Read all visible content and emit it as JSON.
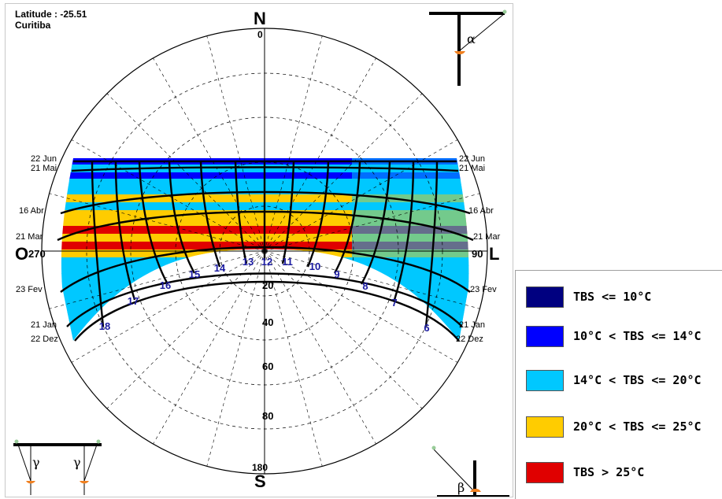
{
  "header": {
    "latitude": "Latitude :  -25.51",
    "city": "Curitiba"
  },
  "cardinals": {
    "north": "N",
    "south": "S",
    "west": "O",
    "east": "L"
  },
  "azimuth_labels": {
    "north": "0",
    "south": "180",
    "west": "270",
    "east": "90"
  },
  "altitude_labels": [
    "20",
    "40",
    "60",
    "80"
  ],
  "date_labels_left": [
    "22 Jun",
    "21 Mai",
    "16 Abr",
    "21 Mar",
    "23 Fev",
    "21 Jan",
    "22 Dez"
  ],
  "date_labels_right": [
    "22 Jun",
    "21 Mai",
    "16 Abr",
    "21 Mar",
    "23 Fev",
    "21 Jan",
    "22 Dez"
  ],
  "hour_labels": [
    "6",
    "7",
    "8",
    "9",
    "10",
    "11",
    "12",
    "13",
    "14",
    "15",
    "16",
    "17",
    "18"
  ],
  "protractors": {
    "alpha": "α",
    "beta": "β",
    "gamma": "γ"
  },
  "legend": [
    {
      "label": "TBS <= 10°C",
      "color": "#000080"
    },
    {
      "label": "10°C < TBS <= 14°C",
      "color": "#0000ff"
    },
    {
      "label": "14°C < TBS <= 20°C",
      "color": "#00c8ff"
    },
    {
      "label": "20°C < TBS <= 25°C",
      "color": "#ffcc00"
    },
    {
      "label": "TBS > 25°C",
      "color": "#e00000"
    }
  ]
}
